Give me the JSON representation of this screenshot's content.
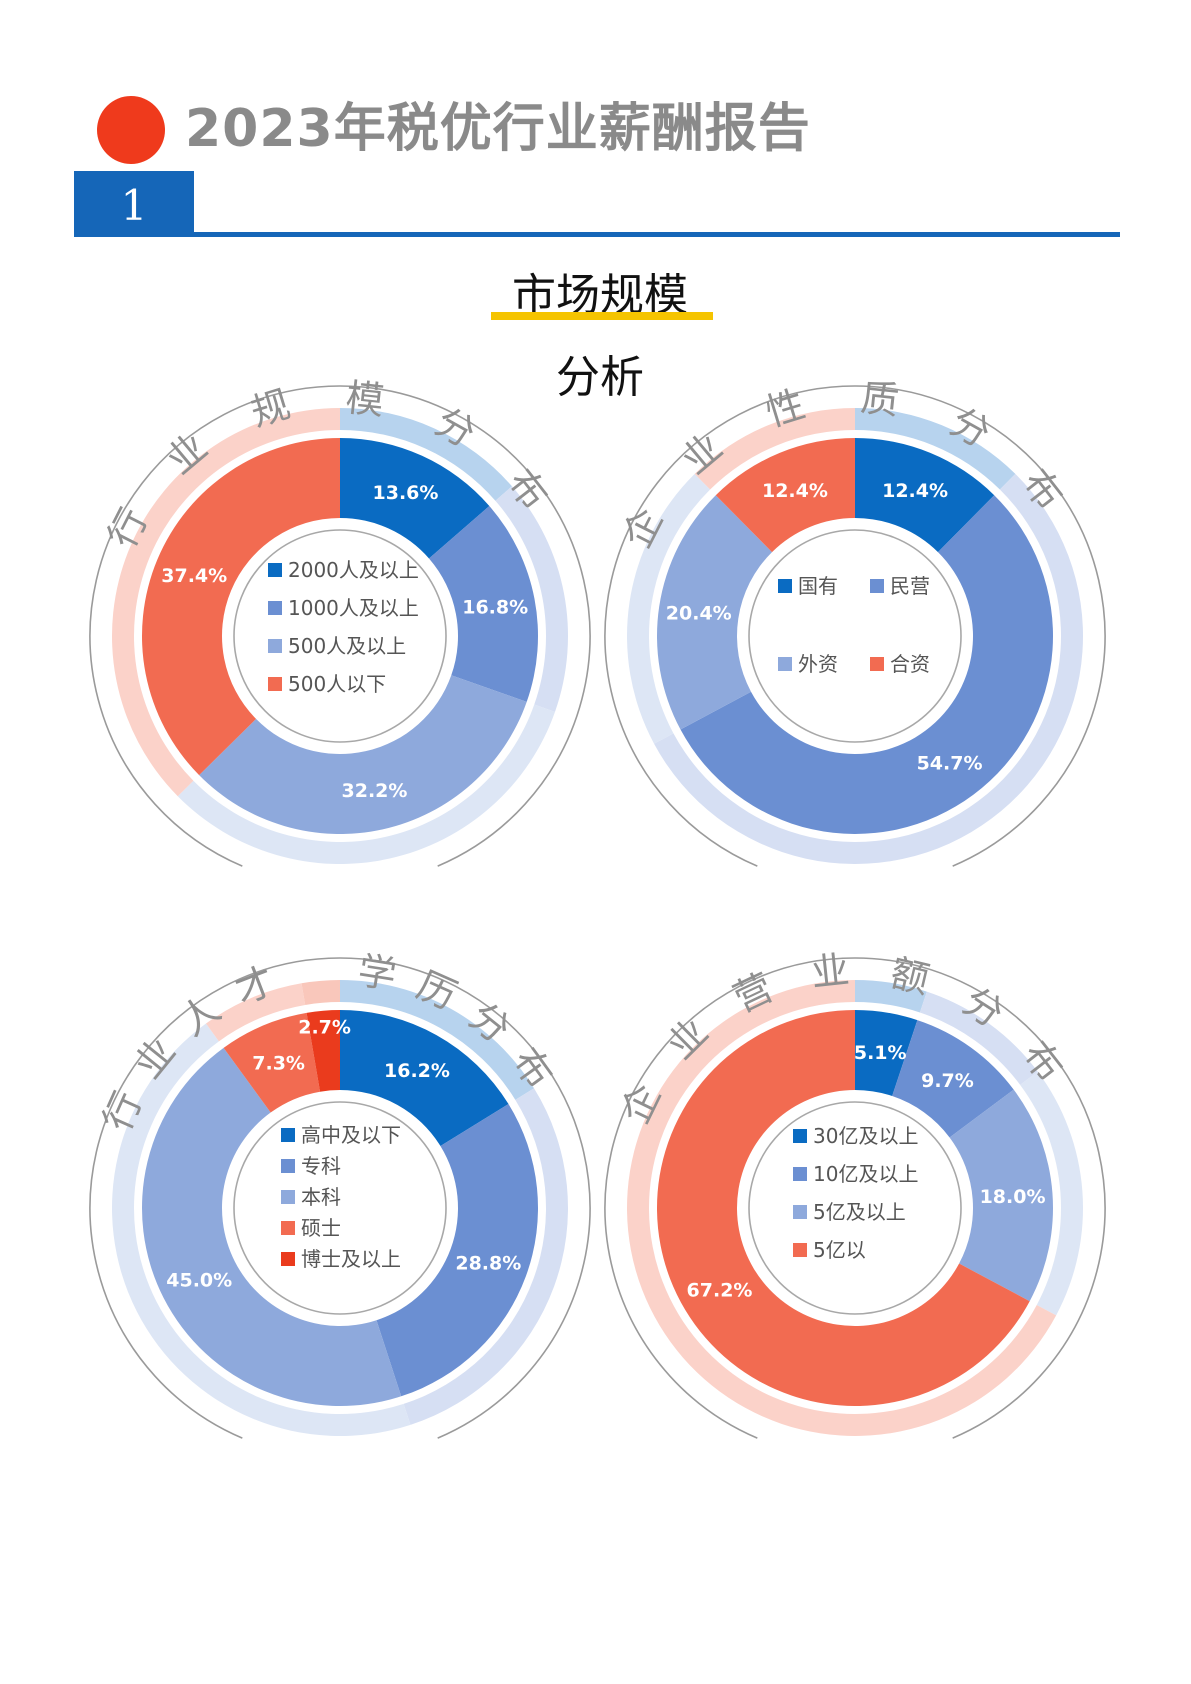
{
  "header": {
    "title": "2023年税优行业薪酬报告",
    "section_number": "1",
    "section_title": "市场规模",
    "section_subtitle": "分析"
  },
  "colors": {
    "accent_red": "#ef3a1c",
    "brand_blue": "#1566b8",
    "highlight_yellow": "#f5c400",
    "slice_1": "#0a6bc2",
    "slice_2": "#6b8fd2",
    "slice_3": "#8ea9dc",
    "slice_4": "#f26b51",
    "slice_5": "#ea3b1d"
  },
  "chart_data": [
    {
      "type": "pie",
      "title": "行业规模分布",
      "categories": [
        "2000人及以上",
        "1000人及以上",
        "500人及以上",
        "500人以下"
      ],
      "values": [
        13.6,
        16.8,
        32.2,
        37.4
      ],
      "labels": [
        "13.6%",
        "16.8%",
        "32.2%",
        "37.4%"
      ]
    },
    {
      "type": "pie",
      "title": "企业性质分布",
      "categories": [
        "国有",
        "民营",
        "外资",
        "合资"
      ],
      "values": [
        12.4,
        54.7,
        20.4,
        12.4
      ],
      "labels": [
        "12.4%",
        "54.7%",
        "20.4%",
        "12.4%"
      ]
    },
    {
      "type": "pie",
      "title": "行业人才 学历分布",
      "categories": [
        "高中及以下",
        "专科",
        "本科",
        "硕士",
        "博士及以上"
      ],
      "values": [
        16.2,
        28.8,
        45.0,
        7.3,
        2.7
      ],
      "labels": [
        "16.2%",
        "28.8%",
        "45.0%",
        "7.3%",
        "2.7%"
      ]
    },
    {
      "type": "pie",
      "title": "企业营业额分布",
      "categories": [
        "30亿及以上",
        "10亿及以上",
        "5亿及以上",
        "5亿以"
      ],
      "values": [
        5.1,
        9.7,
        18.0,
        67.2
      ],
      "labels": [
        "5.1%",
        "9.7%",
        "18.0%",
        "67.2%"
      ]
    }
  ]
}
